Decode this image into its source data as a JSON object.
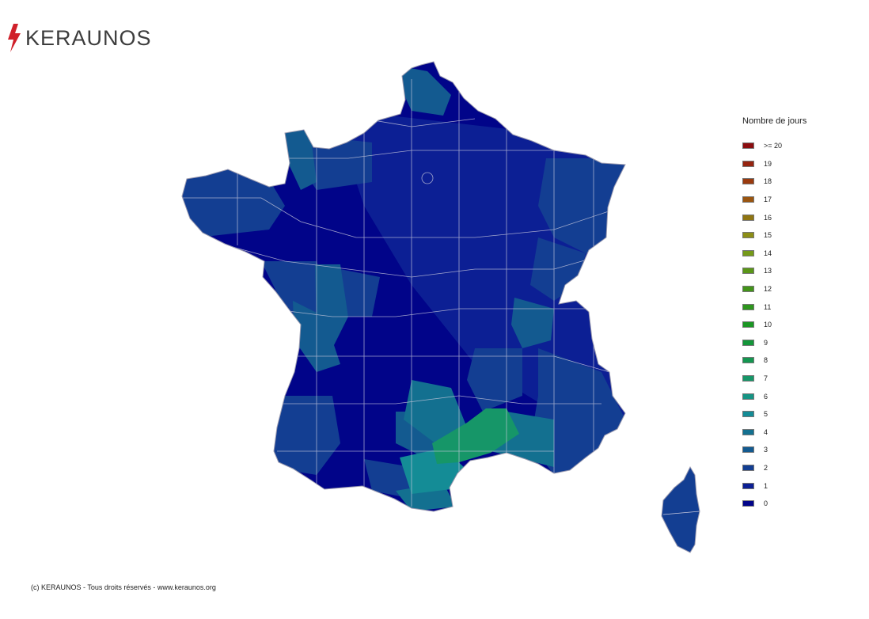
{
  "brand": {
    "name": "KERAUNOS",
    "logo_icon": "lightning-bolt-icon",
    "bolt_color": "#d0202a"
  },
  "legend": {
    "title": "Nombre de jours",
    "items": [
      {
        "label": ">= 20",
        "color": "#8b0d10"
      },
      {
        "label": "19",
        "color": "#962410"
      },
      {
        "label": "18",
        "color": "#9a3a0e"
      },
      {
        "label": "17",
        "color": "#9a5510"
      },
      {
        "label": "16",
        "color": "#8f7512"
      },
      {
        "label": "15",
        "color": "#8c8e16"
      },
      {
        "label": "14",
        "color": "#759a18"
      },
      {
        "label": "13",
        "color": "#5a9618"
      },
      {
        "label": "12",
        "color": "#43941a"
      },
      {
        "label": "11",
        "color": "#2e961e"
      },
      {
        "label": "10",
        "color": "#1b9624"
      },
      {
        "label": "9",
        "color": "#14963a"
      },
      {
        "label": "8",
        "color": "#149650"
      },
      {
        "label": "7",
        "color": "#169668"
      },
      {
        "label": "6",
        "color": "#169484"
      },
      {
        "label": "5",
        "color": "#148c96"
      },
      {
        "label": "4",
        "color": "#137090"
      },
      {
        "label": "3",
        "color": "#135a90"
      },
      {
        "label": "2",
        "color": "#133e92"
      },
      {
        "label": "1",
        "color": "#0c1f94"
      },
      {
        "label": "0",
        "color": "#010489"
      }
    ]
  },
  "footer": "(c) KERAUNOS - Tous droits réservés - www.keraunos.org"
}
